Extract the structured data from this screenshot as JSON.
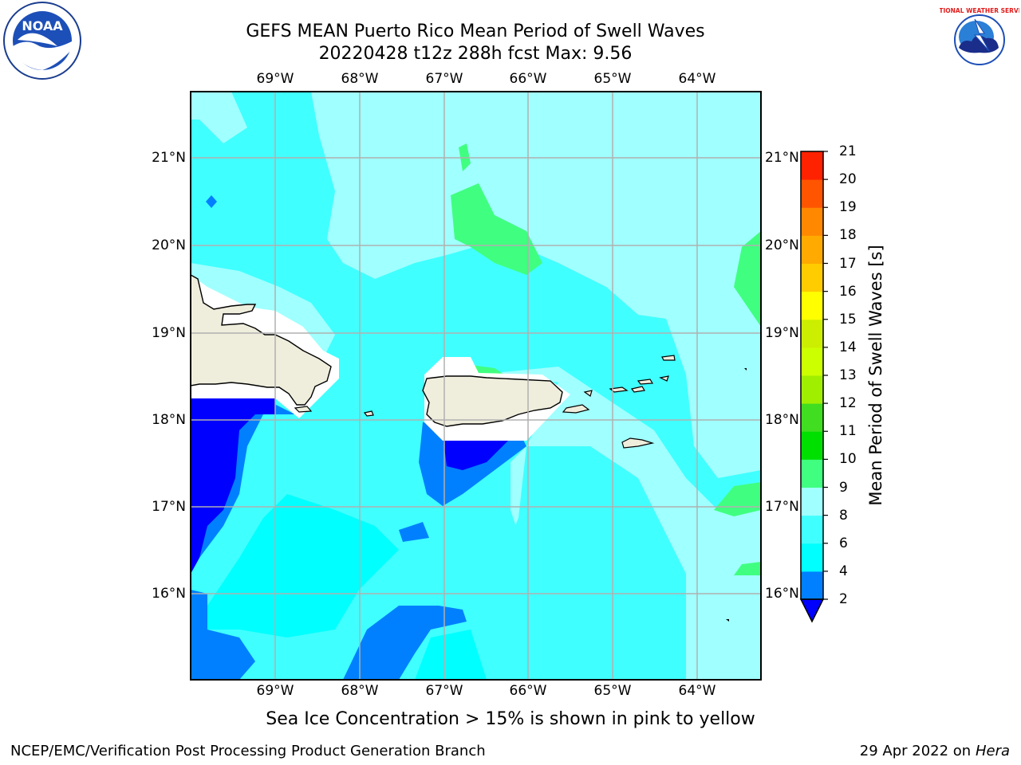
{
  "header": {
    "title_line1": "GEFS MEAN Puerto Rico Mean Period of Swell Waves",
    "title_line2": "20220428 t12z 288h fcst   Max: 9.56"
  },
  "map": {
    "lon_labels": [
      "69°W",
      "68°W",
      "67°W",
      "66°W",
      "65°W",
      "64°W"
    ],
    "lat_labels": [
      "21°N",
      "20°N",
      "19°N",
      "18°N",
      "17°N",
      "16°N"
    ],
    "land_color": "#efeddc",
    "coast_color": "#000000",
    "grid_color": "#b0b0b0"
  },
  "colorbar": {
    "label": "Mean Period of Swell Waves [s]",
    "ticks": [
      "2",
      "4",
      "6",
      "8",
      "9",
      "10",
      "11",
      "12",
      "13",
      "14",
      "15",
      "16",
      "17",
      "18",
      "19",
      "20",
      "21"
    ],
    "colors": [
      "#0000ff",
      "#0080ff",
      "#00ffff",
      "#40ffff",
      "#a0ffff",
      "#40ff80",
      "#00e000",
      "#40dd20",
      "#a0ee00",
      "#ccff00",
      "#ccee00",
      "#ffff00",
      "#ffcc00",
      "#ffaa00",
      "#ff8800",
      "#ff5500",
      "#ff2200",
      "#ff0000"
    ],
    "extend": "min"
  },
  "note": "Sea Ice Concentration > 15% is shown in pink to yellow",
  "footer": {
    "left": "NCEP/EMC/Verification Post Processing Product Generation Branch",
    "right_date": "29 Apr 2022 on ",
    "right_host": "Hera"
  },
  "logos": [
    {
      "name": "noaa-logo",
      "text": "NOAA"
    },
    {
      "name": "nws-logo",
      "text": "NATIONAL WEATHER SERVICE"
    }
  ]
}
